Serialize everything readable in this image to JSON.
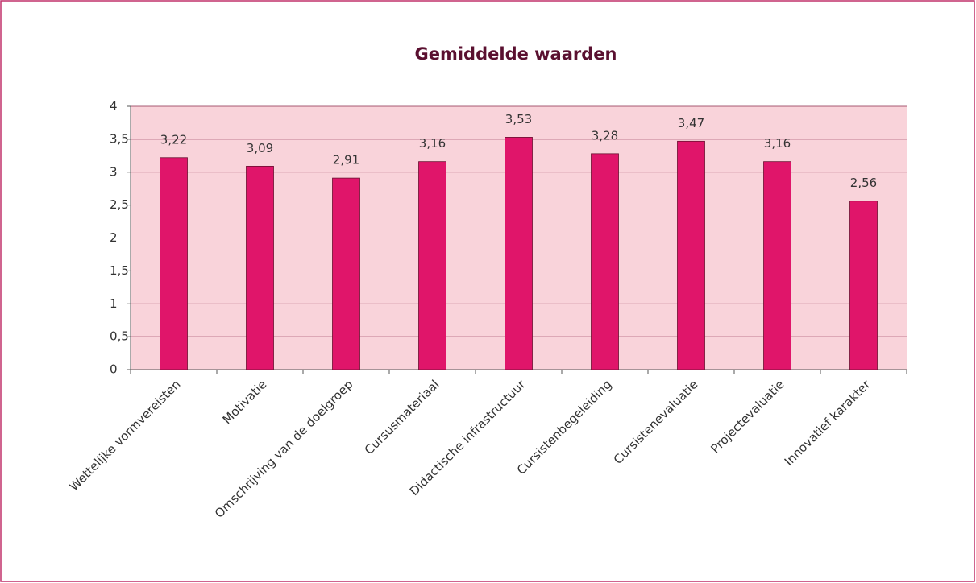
{
  "chart_data": {
    "type": "bar",
    "title": "Gemiddelde waarden",
    "categories": [
      "Wettelijke vormvereisten",
      "Motivatie",
      "Omschrijving van de doelgroep",
      "Cursusmateriaal",
      "Didactische infrastructuur",
      "Cursistenbegeleiding",
      "Cursistenevaluatie",
      "Projectevaluatie",
      "Innovatief karakter"
    ],
    "values": [
      3.22,
      3.09,
      2.91,
      3.16,
      3.53,
      3.28,
      3.47,
      3.16,
      2.56
    ],
    "value_labels": [
      "3,22",
      "3,09",
      "2,91",
      "3,16",
      "3,53",
      "3,28",
      "3,47",
      "3,16",
      "2,56"
    ],
    "color": "#e0156a",
    "ylim": [
      0,
      4
    ],
    "yticks": [
      0,
      {
        "value": 0.5,
        "label": "0,5"
      },
      1,
      {
        "value": 1.5,
        "label": "1,5"
      },
      2,
      {
        "value": 2.5,
        "label": "2,5"
      },
      3,
      {
        "value": 3.5,
        "label": "3,5"
      },
      4
    ],
    "grid": true
  }
}
